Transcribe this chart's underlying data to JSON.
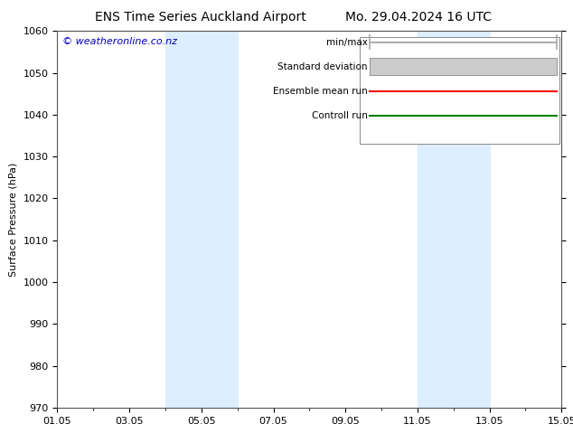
{
  "title_left": "ENS Time Series Auckland Airport",
  "title_right": "Mo. 29.04.2024 16 UTC",
  "ylabel": "Surface Pressure (hPa)",
  "ylim": [
    970,
    1060
  ],
  "yticks": [
    970,
    980,
    990,
    1000,
    1010,
    1020,
    1030,
    1040,
    1050,
    1060
  ],
  "xlim": [
    0,
    14
  ],
  "xtick_labels": [
    "01.05",
    "03.05",
    "05.05",
    "07.05",
    "09.05",
    "11.05",
    "13.05",
    "15.05"
  ],
  "xtick_positions": [
    0,
    2,
    4,
    6,
    8,
    10,
    12,
    14
  ],
  "shaded_bands": [
    {
      "xmin": 3.0,
      "xmax": 5.0
    },
    {
      "xmin": 10.0,
      "xmax": 12.0
    }
  ],
  "shade_color": "#ddeeff",
  "watermark": "© weatheronline.co.nz",
  "watermark_color": "#0000bb",
  "legend_items": [
    {
      "label": "min/max",
      "color": "#aaaaaa",
      "type": "minmax"
    },
    {
      "label": "Standard deviation",
      "color": "#cccccc",
      "type": "band"
    },
    {
      "label": "Ensemble mean run",
      "color": "#ff0000",
      "type": "line"
    },
    {
      "label": "Controll run",
      "color": "#008000",
      "type": "line"
    }
  ],
  "background_color": "#ffffff",
  "title_fontsize": 10,
  "axis_label_fontsize": 8,
  "tick_fontsize": 8,
  "watermark_fontsize": 8,
  "legend_fontsize": 7.5
}
